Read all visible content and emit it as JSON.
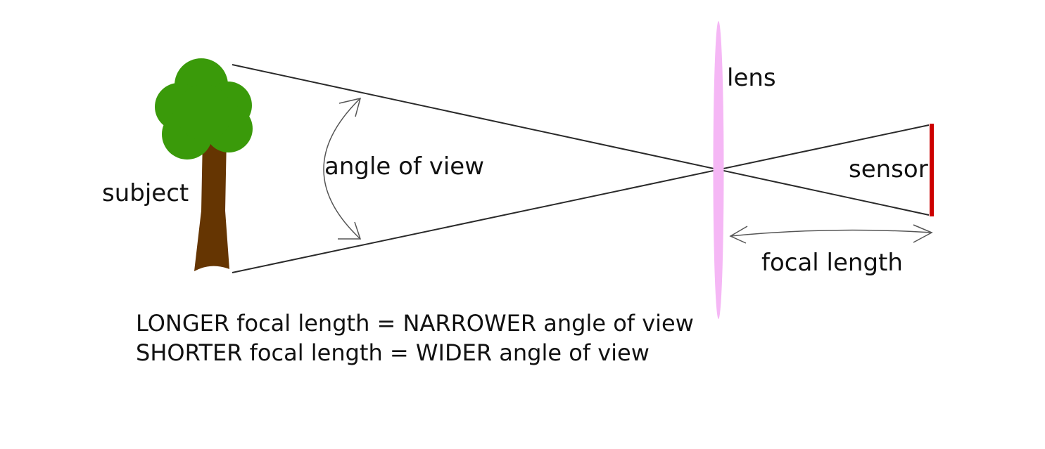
{
  "labels": {
    "subject": "subject",
    "angle_of_view": "angle of view",
    "lens": "lens",
    "sensor": "sensor",
    "focal_length": "focal length"
  },
  "rules": [
    "LONGER focal length = NARROWER angle of view",
    "SHORTER focal length = WIDER angle of view"
  ],
  "colors": {
    "foliage": "#3a9a0a",
    "trunk": "#653502",
    "lens": "#f5b7f5",
    "sensor": "#cc0000",
    "ray": "#2a2a2a",
    "arrow": "#555555",
    "text": "#111111"
  }
}
